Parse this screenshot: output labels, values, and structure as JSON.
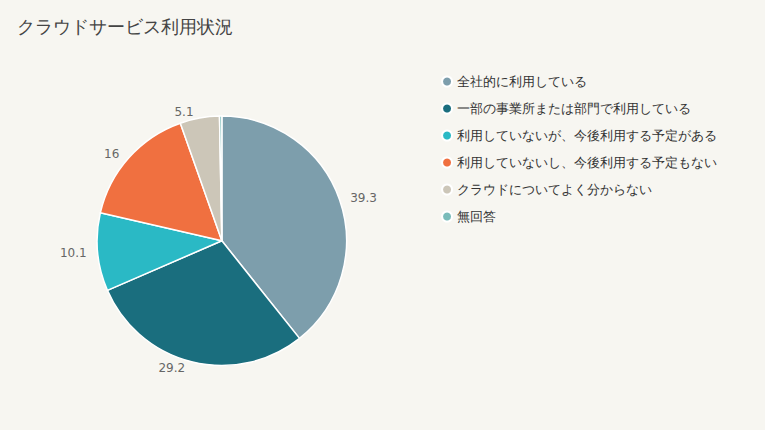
{
  "chart_data": {
    "type": "pie",
    "title": "クラウドサービス利用状況",
    "categories": [
      "全社的に利用している",
      "一部の事業所または部門で利用している",
      "利用していないが、今後利用する予定がある",
      "利用していないし、今後利用する予定もない",
      "クラウドについてよく分からない",
      "無回答"
    ],
    "values": [
      39.3,
      29.2,
      10.1,
      16.0,
      5.1,
      0.3
    ],
    "value_labels": [
      "39.3",
      "29.2",
      "10.1",
      "16",
      "5.1",
      null
    ],
    "colors": [
      "#7d9eac",
      "#1a6e7e",
      "#2ab9c5",
      "#f07040",
      "#ccc6b8",
      "#7abcba"
    ],
    "data_labels": true,
    "legend": "right"
  }
}
